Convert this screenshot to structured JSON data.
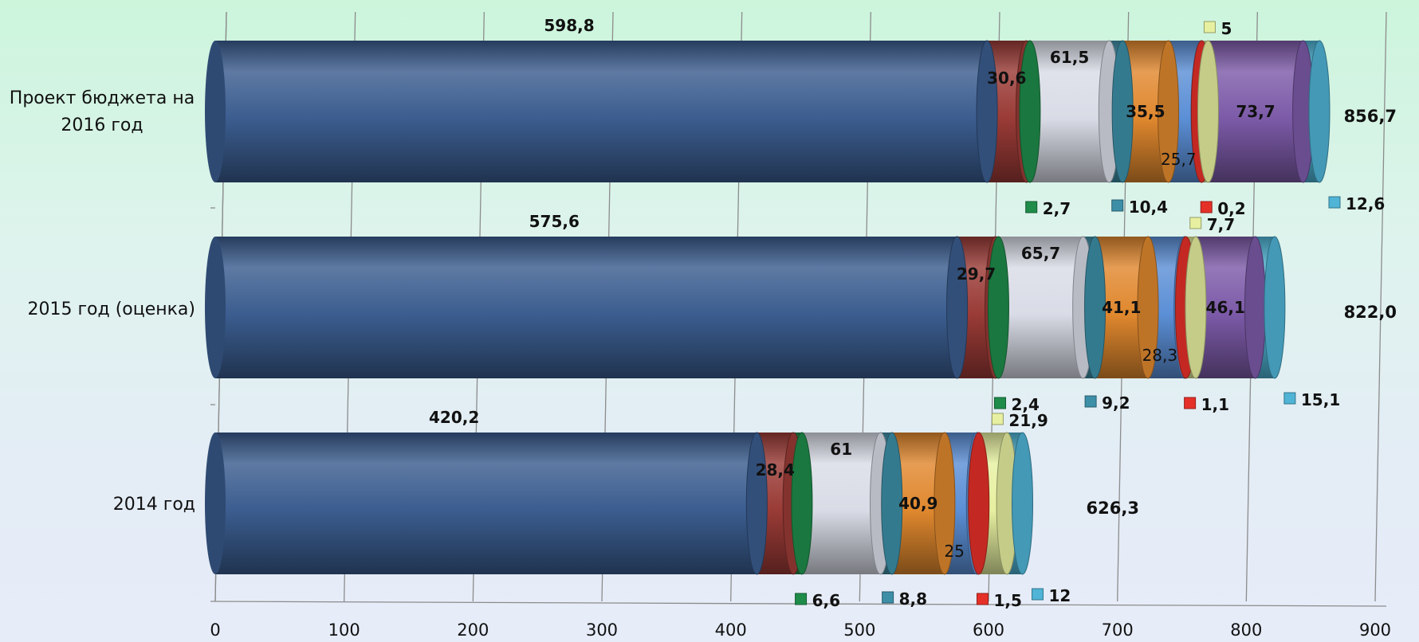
{
  "chart_data": {
    "type": "bar",
    "orientation": "horizontal",
    "stacked": true,
    "categories": [
      "Проект бюджета на 2016 год",
      "2015 год (оценка)",
      "2014 год"
    ],
    "category_label_lines": [
      [
        "Проект бюджета на",
        "2016 год"
      ],
      [
        "2015 год (оценка)"
      ],
      [
        "2014 год"
      ]
    ],
    "xlim": [
      0,
      900
    ],
    "xticks": [
      "0",
      "100",
      "200",
      "300",
      "400",
      "500",
      "600",
      "700",
      "800",
      "900"
    ],
    "grid": true,
    "legend": "none",
    "series": [
      {
        "color": "#3b5d8f",
        "values": [
          598.8,
          575.6,
          420.2
        ],
        "labels": [
          "598,8",
          "575,6",
          "420,2"
        ]
      },
      {
        "color": "#9a3b36",
        "values": [
          30.6,
          29.7,
          28.4
        ],
        "labels": [
          "30,6",
          "29,7",
          "28,4"
        ]
      },
      {
        "color": "#1f8c4a",
        "values": [
          2.7,
          2.4,
          6.6
        ],
        "labels": [
          "2,7",
          "2,4",
          "6,6"
        ]
      },
      {
        "color": "#d9dce6",
        "values": [
          61.5,
          65.7,
          61
        ],
        "labels": [
          "61,5",
          "65,7",
          "61"
        ]
      },
      {
        "color": "#3d8fa8",
        "values": [
          10.4,
          9.2,
          8.8
        ],
        "labels": [
          "10,4",
          "9,2",
          "8,8"
        ]
      },
      {
        "color": "#e0882e",
        "values": [
          35.5,
          41.1,
          40.9
        ],
        "labels": [
          "35,5",
          "41,1",
          "40,9"
        ]
      },
      {
        "color": "#5b8fd6",
        "values": [
          25.7,
          28.3,
          25
        ],
        "labels": [
          "25,7",
          "28,3",
          "25"
        ]
      },
      {
        "color": "#e53028",
        "values": [
          0.2,
          1.1,
          1.5
        ],
        "labels": [
          "0,2",
          "1,1",
          "1,5"
        ]
      },
      {
        "color": "#e6f0a0",
        "values": [
          5,
          7.7,
          21.9
        ],
        "labels": [
          "5",
          "7,7",
          "21,9"
        ]
      },
      {
        "color": "#7c5aa8",
        "values": [
          73.7,
          46.1,
          0
        ],
        "labels": [
          "73,7",
          "46,1",
          ""
        ]
      },
      {
        "color": "#4fb4d6",
        "values": [
          12.6,
          15.1,
          12
        ],
        "labels": [
          "12,6",
          "15,1",
          "12"
        ]
      }
    ],
    "totals": [
      "856,7",
      "822,0",
      "626,3"
    ]
  }
}
